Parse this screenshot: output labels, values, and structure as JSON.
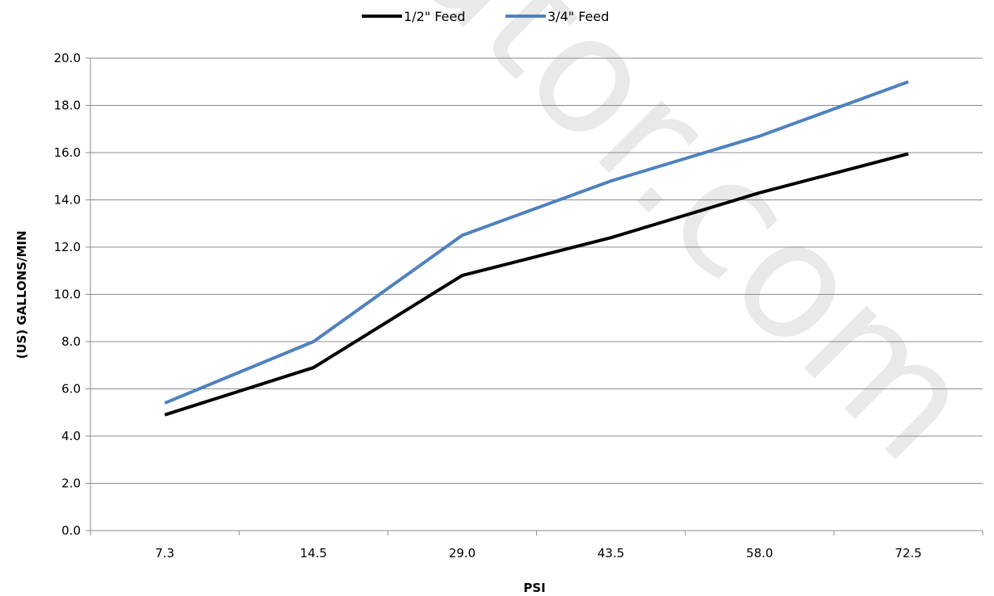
{
  "chart_data": {
    "type": "line",
    "title": "",
    "xlabel": "PSI",
    "ylabel": "(US) GALLONS/MIN",
    "categories": [
      "7.3",
      "14.5",
      "29.0",
      "43.5",
      "58.0",
      "72.5"
    ],
    "ylim": [
      0,
      20
    ],
    "yticks": [
      "0.0",
      "2.0",
      "4.0",
      "6.0",
      "8.0",
      "10.0",
      "12.0",
      "14.0",
      "16.0",
      "18.0",
      "20.0"
    ],
    "grid": true,
    "legend_position": "top",
    "series": [
      {
        "name": "1/2\" Feed",
        "color": "#000000",
        "values": [
          4.9,
          6.9,
          10.8,
          12.4,
          14.3,
          15.95
        ]
      },
      {
        "name": "3/4\" Feed",
        "color": "#4f81bd",
        "values": [
          5.4,
          8.0,
          12.5,
          14.8,
          16.7,
          19.0
        ]
      }
    ]
  },
  "watermark": "ator.com"
}
